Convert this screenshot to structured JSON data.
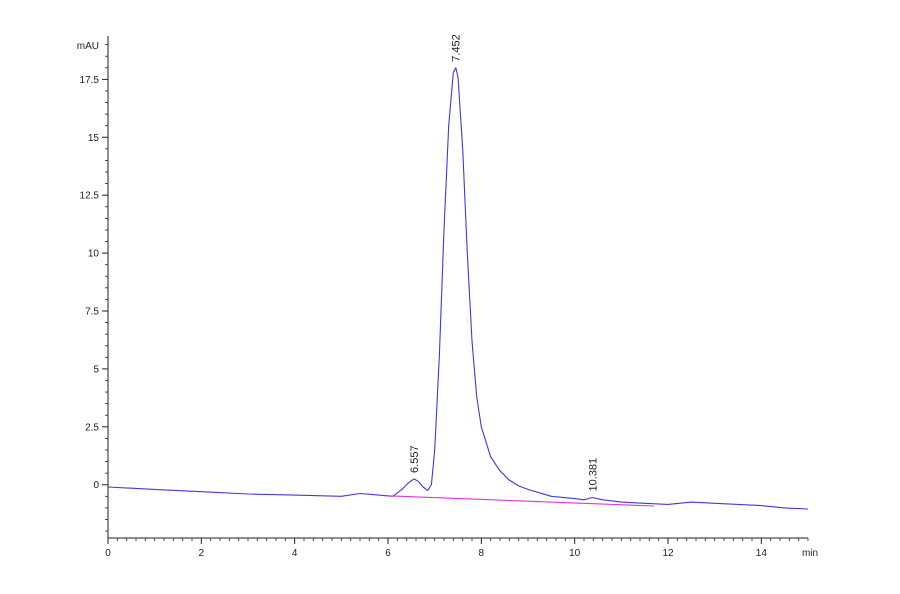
{
  "chart_data": {
    "type": "line",
    "title": "",
    "xlabel": "",
    "ylabel": "",
    "x_unit": "min",
    "y_unit": "mAU",
    "xlim": [
      0,
      15
    ],
    "ylim": [
      -2.3,
      19.2
    ],
    "x_ticks": [
      0,
      2,
      4,
      6,
      8,
      10,
      12,
      14
    ],
    "y_ticks": [
      0,
      2.5,
      5,
      7.5,
      10,
      12.5,
      15,
      17.5
    ],
    "x_tick_labels": [
      "0",
      "2",
      "4",
      "6",
      "8",
      "10",
      "12",
      "14"
    ],
    "y_tick_labels": [
      "0",
      "2.5",
      "5",
      "7.5",
      "10",
      "12.5",
      "15",
      "17.5"
    ],
    "grid": false,
    "colors": {
      "signal": "#3a3ae0",
      "baseline": "#e033d8",
      "axis": "#222222"
    },
    "series": [
      {
        "role": "signal",
        "x": [
          0,
          1,
          2,
          3,
          4,
          5,
          5.4,
          5.8,
          6.1,
          6.3,
          6.45,
          6.557,
          6.65,
          6.75,
          6.85,
          6.93,
          7.0,
          7.1,
          7.2,
          7.3,
          7.4,
          7.452,
          7.5,
          7.6,
          7.7,
          7.8,
          7.9,
          8.0,
          8.2,
          8.4,
          8.6,
          8.8,
          9.0,
          9.5,
          10.0,
          10.2,
          10.381,
          10.6,
          11.0,
          11.5,
          12.0,
          12.5,
          13.0,
          13.5,
          14.0,
          14.5,
          15.0
        ],
        "y": [
          -0.1,
          -0.2,
          -0.3,
          -0.4,
          -0.45,
          -0.5,
          -0.38,
          -0.45,
          -0.5,
          -0.2,
          0.1,
          0.25,
          0.15,
          -0.1,
          -0.25,
          0.0,
          1.5,
          5.5,
          11.0,
          15.5,
          17.8,
          18.0,
          17.6,
          14.5,
          10.0,
          6.2,
          3.8,
          2.5,
          1.2,
          0.6,
          0.2,
          -0.05,
          -0.2,
          -0.5,
          -0.6,
          -0.65,
          -0.55,
          -0.65,
          -0.75,
          -0.8,
          -0.85,
          -0.75,
          -0.8,
          -0.85,
          -0.9,
          -1.0,
          -1.05
        ]
      },
      {
        "role": "baseline",
        "x": [
          6.0,
          11.7
        ],
        "y": [
          -0.48,
          -0.92
        ]
      }
    ],
    "peak_labels": [
      {
        "x": 6.557,
        "y": 0.25,
        "label": "6.557"
      },
      {
        "x": 7.452,
        "y": 18.0,
        "label": "7.452"
      },
      {
        "x": 10.381,
        "y": -0.55,
        "label": "10.381"
      }
    ]
  }
}
